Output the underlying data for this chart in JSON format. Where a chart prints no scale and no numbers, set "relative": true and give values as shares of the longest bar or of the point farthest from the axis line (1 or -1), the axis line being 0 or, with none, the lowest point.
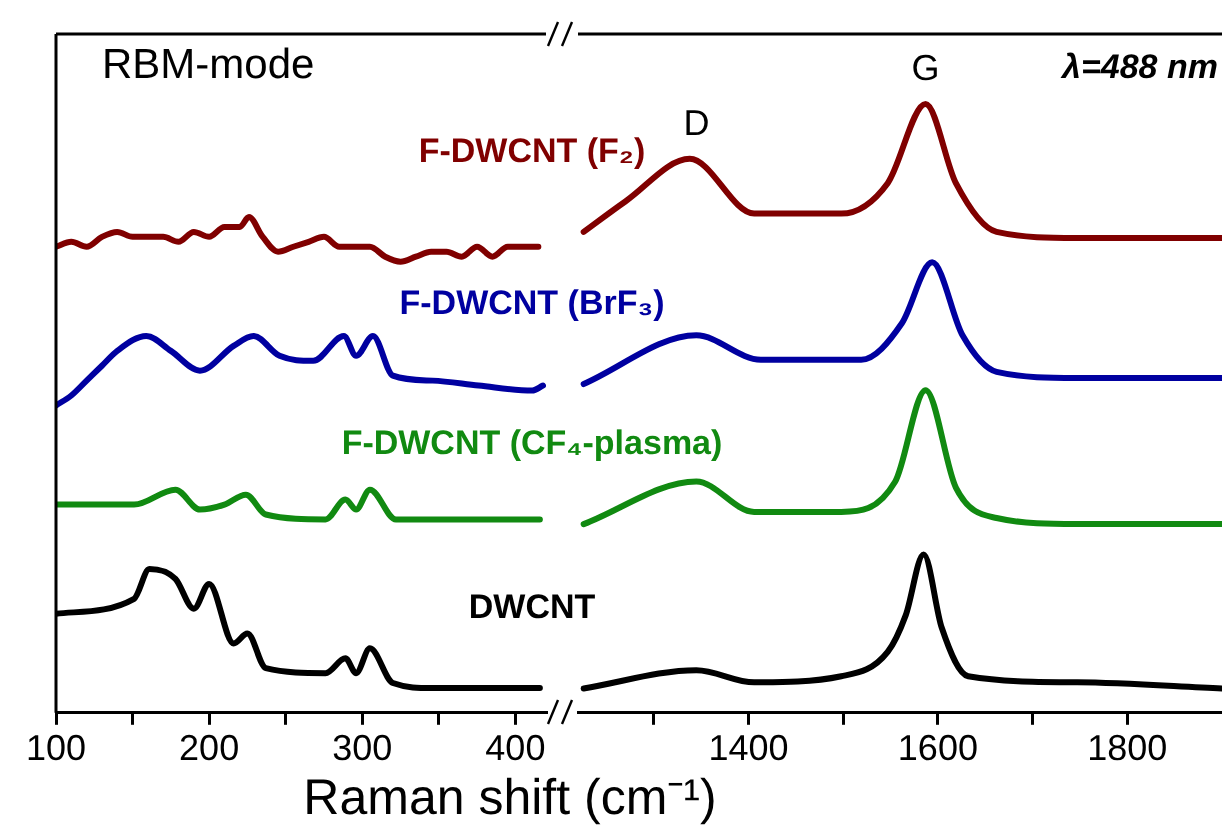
{
  "chart_data": [
    {
      "type": "line",
      "relative": true,
      "xlabel": "Raman shift (cm⁻¹)",
      "annotations": [
        "RBM-mode"
      ],
      "xlim": [
        100,
        420
      ],
      "xticks": [
        100,
        {
          "value": 150,
          "label": null
        },
        200,
        {
          "value": 250,
          "label": null
        },
        300,
        {
          "value": 350,
          "label": null
        },
        400
      ],
      "legend": false,
      "marker": "none",
      "line_style": "solid",
      "series": [
        {
          "name": "F-DWCNT (F₂)",
          "color": "#800000",
          "x": [
            100,
            110,
            120,
            130,
            140,
            150,
            160,
            170,
            180,
            190,
            200,
            210,
            220,
            226,
            235,
            245,
            255,
            265,
            275,
            285,
            295,
            305,
            315,
            325,
            335,
            345,
            355,
            365,
            375,
            385,
            395,
            405,
            415
          ],
          "values": [
            0.94,
            0.95,
            0.94,
            0.96,
            0.97,
            0.96,
            0.96,
            0.96,
            0.95,
            0.97,
            0.96,
            0.98,
            0.98,
            1,
            0.96,
            0.93,
            0.94,
            0.95,
            0.96,
            0.94,
            0.94,
            0.94,
            0.92,
            0.91,
            0.92,
            0.93,
            0.93,
            0.92,
            0.94,
            0.92,
            0.94,
            0.94,
            0.94
          ]
        },
        {
          "name": "F-DWCNT (BrF₃)",
          "color": "#0000a0",
          "x": [
            100,
            110,
            120,
            130,
            140,
            159,
            175,
            194,
            216,
            229,
            246,
            268,
            288,
            296,
            307,
            320,
            346,
            376,
            411,
            418
          ],
          "values": [
            0.62,
            0.64,
            0.67,
            0.7,
            0.73,
            0.76,
            0.73,
            0.69,
            0.74,
            0.76,
            0.72,
            0.71,
            0.76,
            0.72,
            0.76,
            0.68,
            0.67,
            0.66,
            0.65,
            0.66
          ]
        },
        {
          "name": "F-DWCNT (CF₄-plasma)",
          "color": "#118a11",
          "x": [
            100,
            151,
            178,
            194,
            210,
            224,
            237,
            276,
            289,
            296,
            305,
            322,
            346,
            416
          ],
          "values": [
            0.42,
            0.42,
            0.45,
            0.41,
            0.42,
            0.44,
            0.4,
            0.39,
            0.43,
            0.41,
            0.45,
            0.39,
            0.39,
            0.39
          ]
        },
        {
          "name": "DWCNT",
          "color": "#000000",
          "x": [
            100,
            151,
            161,
            178,
            190,
            200,
            216,
            225,
            237,
            276,
            289,
            296,
            305,
            320,
            346,
            416
          ],
          "values": [
            0.2,
            0.23,
            0.29,
            0.27,
            0.21,
            0.26,
            0.14,
            0.16,
            0.09,
            0.08,
            0.11,
            0.08,
            0.13,
            0.06,
            0.05,
            0.05
          ]
        }
      ]
    },
    {
      "type": "line",
      "relative": true,
      "annotations": [
        {
          "text": "D",
          "x": 1345,
          "y": 0.91
        },
        {
          "text": "G",
          "x": 1587,
          "y": 1
        },
        "λ=488 nm"
      ],
      "xlim": [
        1220,
        1900
      ],
      "xticks": [
        {
          "value": 1300,
          "label": null
        },
        1400,
        {
          "value": 1500,
          "label": null
        },
        1600,
        {
          "value": 1700,
          "label": null
        },
        1800
      ],
      "legend": false,
      "marker": "none",
      "line_style": "solid",
      "series": [
        {
          "color": "#800000",
          "x": [
            1226,
            1270,
            1338,
            1406,
            1498,
            1547,
            1587,
            1619,
            1662,
            1747,
            1900
          ],
          "values": [
            0.79,
            0.84,
            0.91,
            0.82,
            0.82,
            0.87,
            1,
            0.87,
            0.79,
            0.78,
            0.78
          ]
        },
        {
          "color": "#0000a0",
          "x": [
            1226,
            1345,
            1413,
            1519,
            1562,
            1594,
            1626,
            1662,
            1747,
            1900
          ],
          "values": [
            0.54,
            0.62,
            0.58,
            0.58,
            0.64,
            0.74,
            0.62,
            0.56,
            0.55,
            0.55
          ]
        },
        {
          "color": "#118a11",
          "x": [
            1226,
            1345,
            1406,
            1498,
            1555,
            1587,
            1619,
            1662,
            1747,
            1900
          ],
          "values": [
            0.31,
            0.38,
            0.33,
            0.33,
            0.38,
            0.53,
            0.37,
            0.32,
            0.31,
            0.31
          ]
        },
        {
          "color": "#000000",
          "x": [
            1226,
            1345,
            1406,
            1498,
            1547,
            1566,
            1585,
            1604,
            1632,
            1747,
            1900
          ],
          "values": [
            0.04,
            0.07,
            0.05,
            0.06,
            0.1,
            0.16,
            0.26,
            0.14,
            0.06,
            0.05,
            0.04
          ]
        }
      ]
    }
  ]
}
